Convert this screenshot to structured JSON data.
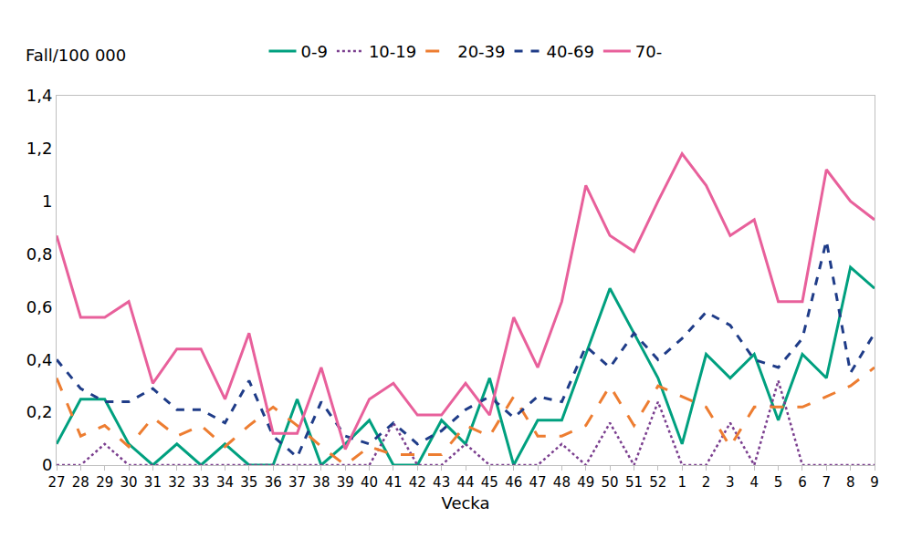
{
  "chart_data": {
    "type": "line",
    "y_label": "Fall/100 000",
    "x_label": "Vecka",
    "categories": [
      "27",
      "28",
      "29",
      "30",
      "31",
      "32",
      "33",
      "34",
      "35",
      "36",
      "37",
      "38",
      "39",
      "40",
      "41",
      "42",
      "43",
      "44",
      "45",
      "46",
      "47",
      "48",
      "49",
      "50",
      "51",
      "52",
      "1",
      "2",
      "3",
      "4",
      "5",
      "6",
      "7",
      "8",
      "9"
    ],
    "series": [
      {
        "name": "0-9",
        "color": "#00a07f",
        "line_style": "solid",
        "values": [
          0.08,
          0.25,
          0.25,
          0.08,
          0,
          0.08,
          0,
          0.08,
          0,
          0,
          0.25,
          0,
          0.08,
          0.17,
          0,
          0,
          0.17,
          0.08,
          0.33,
          0,
          0.17,
          0.17,
          0.42,
          0.67,
          0.5,
          0.33,
          0.08,
          0.42,
          0.33,
          0.42,
          0.17,
          0.42,
          0.33,
          0.75,
          0.67
        ]
      },
      {
        "name": "10-19",
        "color": "#7b3f8f",
        "line_style": "dot",
        "values": [
          0,
          0,
          0.08,
          0,
          0,
          0,
          0,
          0,
          0,
          0,
          0,
          0,
          0,
          0,
          0.16,
          0,
          0,
          0.08,
          0,
          0,
          0,
          0.08,
          0,
          0.16,
          0,
          0.24,
          0,
          0,
          0.16,
          0,
          0.32,
          0,
          0,
          0,
          0
        ]
      },
      {
        "name": "20-39",
        "color": "#ed7d31",
        "line_style": "longdash",
        "values": [
          0.33,
          0.11,
          0.15,
          0.07,
          0.18,
          0.11,
          0.15,
          0.07,
          0.15,
          0.22,
          0.15,
          0.07,
          0,
          0.07,
          0.04,
          0.04,
          0.04,
          0.15,
          0.11,
          0.26,
          0.11,
          0.11,
          0.15,
          0.3,
          0.15,
          0.3,
          0.26,
          0.22,
          0.07,
          0.22,
          0.22,
          0.22,
          0.26,
          0.3,
          0.37
        ]
      },
      {
        "name": "40-69",
        "color": "#1f3c88",
        "line_style": "dash",
        "values": [
          0.4,
          0.29,
          0.24,
          0.24,
          0.29,
          0.21,
          0.21,
          0.16,
          0.32,
          0.11,
          0.03,
          0.24,
          0.11,
          0.08,
          0.16,
          0.08,
          0.13,
          0.21,
          0.26,
          0.18,
          0.26,
          0.24,
          0.45,
          0.37,
          0.5,
          0.4,
          0.48,
          0.58,
          0.53,
          0.4,
          0.37,
          0.48,
          0.85,
          0.35,
          0.5
        ]
      },
      {
        "name": "70-",
        "color": "#e8609b",
        "line_style": "solid",
        "values": [
          0.87,
          0.56,
          0.56,
          0.62,
          0.31,
          0.44,
          0.44,
          0.25,
          0.5,
          0.12,
          0.12,
          0.37,
          0.06,
          0.25,
          0.31,
          0.19,
          0.19,
          0.31,
          0.19,
          0.56,
          0.37,
          0.62,
          1.06,
          0.87,
          0.81,
          1.0,
          1.18,
          1.06,
          0.87,
          0.93,
          0.62,
          0.62,
          1.12,
          1.0,
          0.93
        ]
      }
    ],
    "ylim": [
      0,
      1.4
    ],
    "yticks": [
      0,
      {
        "value": 0.2,
        "label": "0,2"
      },
      {
        "value": 0.4,
        "label": "0,4"
      },
      {
        "value": 0.6,
        "label": "0,6"
      },
      {
        "value": 0.8,
        "label": "0,8"
      },
      1,
      {
        "value": 1.2,
        "label": "1,2"
      },
      {
        "value": 1.4,
        "label": "1,4"
      }
    ],
    "grid": false,
    "legend": "top"
  }
}
